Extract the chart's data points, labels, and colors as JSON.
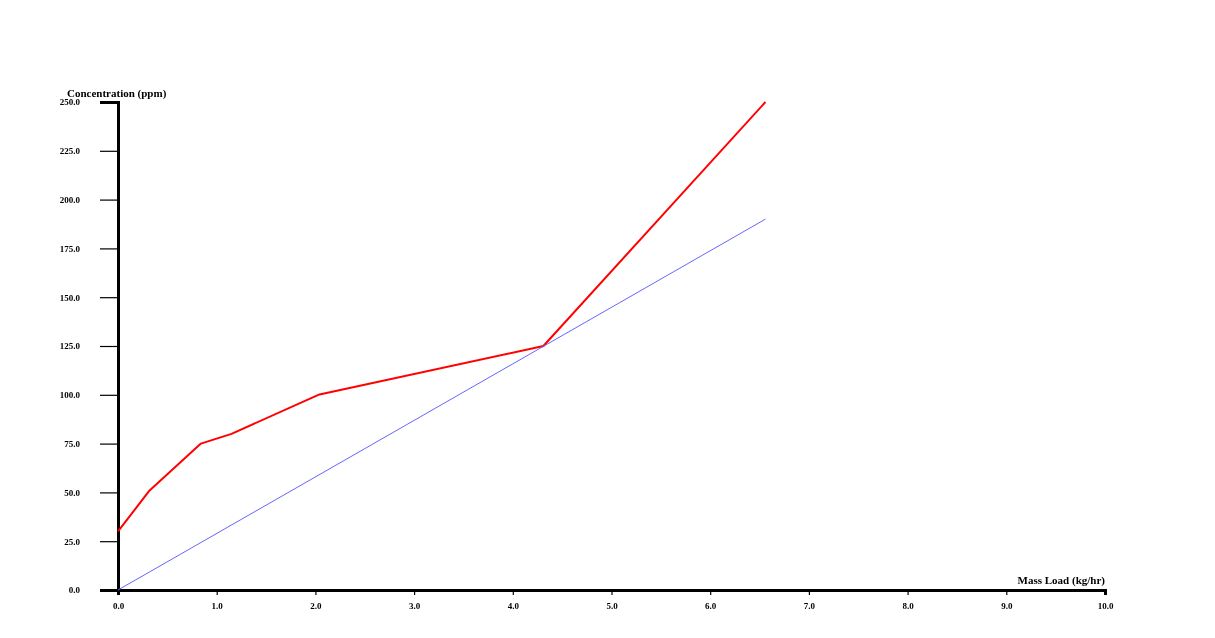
{
  "chart_data": {
    "type": "line",
    "xlabel": "Mass Load (kg/hr)",
    "ylabel": "Concentration (ppm)",
    "xlim": [
      0,
      10
    ],
    "ylim": [
      0,
      250
    ],
    "xticks": [
      {
        "value": 0,
        "label": "0.0"
      },
      {
        "value": 1,
        "label": "1.0"
      },
      {
        "value": 2,
        "label": "2.0"
      },
      {
        "value": 3,
        "label": "3.0"
      },
      {
        "value": 4,
        "label": "4.0"
      },
      {
        "value": 5,
        "label": "5.0"
      },
      {
        "value": 6,
        "label": "6.0"
      },
      {
        "value": 7,
        "label": "7.0"
      },
      {
        "value": 8,
        "label": "8.0"
      },
      {
        "value": 9,
        "label": "9.0"
      },
      {
        "value": 10,
        "label": "10.0"
      }
    ],
    "yticks": [
      {
        "value": 0,
        "label": "0.0"
      },
      {
        "value": 25,
        "label": "25.0"
      },
      {
        "value": 50,
        "label": "50.0"
      },
      {
        "value": 75,
        "label": "75.0"
      },
      {
        "value": 100,
        "label": "100.0"
      },
      {
        "value": 125,
        "label": "125.0"
      },
      {
        "value": 150,
        "label": "150.0"
      },
      {
        "value": 175,
        "label": "175.0"
      },
      {
        "value": 200,
        "label": "200.0"
      },
      {
        "value": 225,
        "label": "225.0"
      },
      {
        "value": 250,
        "label": "250.0"
      }
    ],
    "grid": false,
    "marker": "none",
    "series": [
      {
        "color": "#ff0000",
        "x": [
          0,
          0.32,
          0.84,
          1.15,
          2.03,
          4.31,
          6.56
        ],
        "values": [
          30,
          51,
          75,
          80,
          100,
          125,
          250
        ]
      },
      {
        "color": "#6666ff",
        "x": [
          0,
          6.56
        ],
        "values": [
          0,
          190
        ]
      }
    ]
  }
}
